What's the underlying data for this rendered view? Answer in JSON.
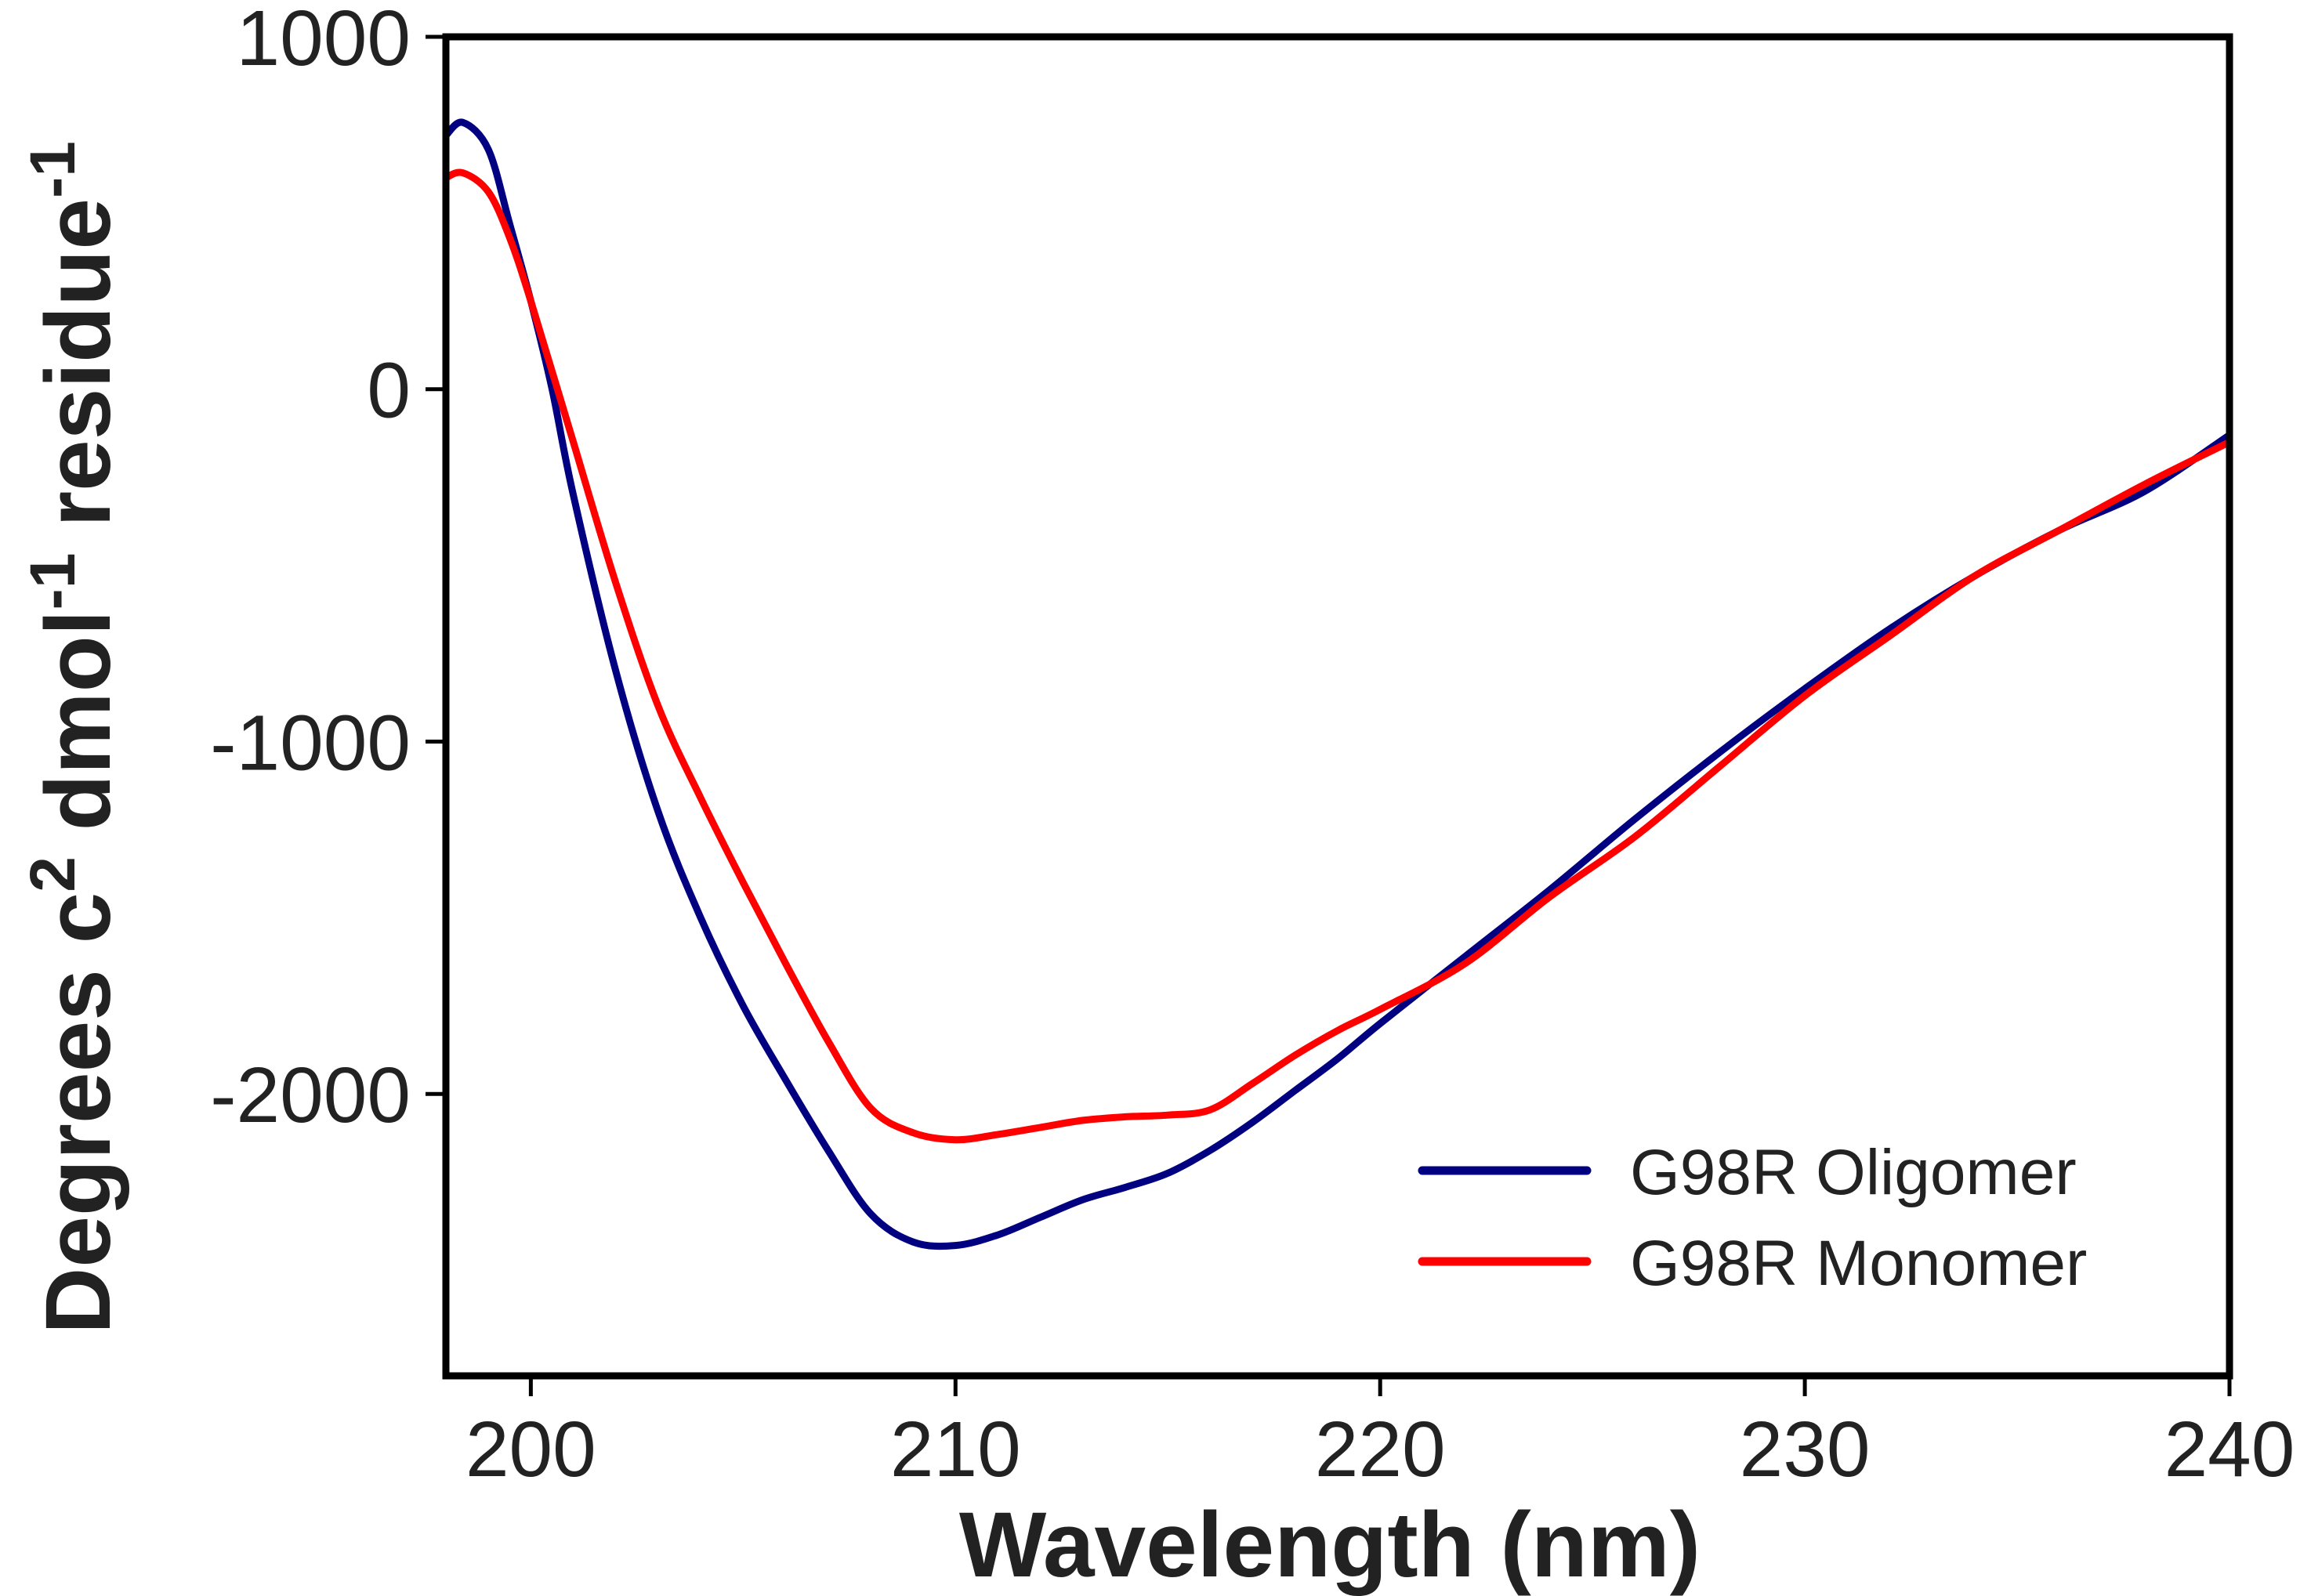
{
  "chart_data": {
    "type": "line",
    "title": "",
    "xlabel": "Wavelength (nm)",
    "ylabel_parts": [
      "Degrees c",
      "2",
      " dmol",
      "-1",
      " residue",
      "-1"
    ],
    "ylabel": "Degrees c2 dmol-1 residue-1",
    "xlim": [
      198,
      240
    ],
    "ylim": [
      -2800,
      1000
    ],
    "xticks": [
      200,
      210,
      220,
      230,
      240
    ],
    "yticks": [
      1000,
      0,
      -1000,
      -2000
    ],
    "xtick_labels": [
      "200",
      "210",
      "220",
      "230",
      "240"
    ],
    "ytick_labels": [
      "1000",
      "0",
      "-1000",
      "-2000"
    ],
    "grid": false,
    "legend_position": "bottom-right",
    "series": [
      {
        "name": "G98R Oligomer",
        "color": "#000080",
        "x": [
          198.0,
          198.4,
          199.0,
          199.5,
          200.0,
          200.5,
          201.0,
          202.0,
          203.0,
          204.0,
          205.0,
          206.0,
          207.0,
          208.0,
          209.0,
          210.0,
          211.0,
          212.0,
          213.0,
          214.0,
          215.0,
          216.0,
          217.0,
          218.0,
          219.0,
          220.0,
          222.0,
          224.0,
          226.0,
          228.0,
          230.0,
          232.0,
          234.0,
          236.0,
          238.0,
          240.0
        ],
        "y": [
          720,
          757,
          680,
          470,
          250,
          0,
          -300,
          -800,
          -1200,
          -1500,
          -1750,
          -1960,
          -2160,
          -2340,
          -2420,
          -2430,
          -2400,
          -2350,
          -2300,
          -2265,
          -2225,
          -2160,
          -2080,
          -1990,
          -1900,
          -1800,
          -1610,
          -1420,
          -1220,
          -1030,
          -850,
          -680,
          -530,
          -400,
          -290,
          -130
        ]
      },
      {
        "name": "G98R Monomer",
        "color": "#ff0000",
        "x": [
          198.0,
          198.4,
          199.0,
          199.5,
          200.0,
          201.0,
          202.0,
          203.0,
          204.0,
          205.0,
          206.0,
          207.0,
          208.0,
          209.0,
          210.0,
          211.0,
          212.0,
          213.0,
          214.0,
          215.0,
          216.0,
          217.0,
          218.0,
          219.0,
          220.0,
          222.0,
          224.0,
          226.0,
          228.0,
          230.0,
          232.0,
          234.0,
          236.0,
          238.0,
          240.0
        ],
        "y": [
          600,
          614,
          560,
          430,
          250,
          -150,
          -550,
          -900,
          -1160,
          -1400,
          -1630,
          -1850,
          -2040,
          -2110,
          -2130,
          -2115,
          -2095,
          -2075,
          -2065,
          -2060,
          -2045,
          -1970,
          -1890,
          -1820,
          -1760,
          -1630,
          -1440,
          -1270,
          -1070,
          -870,
          -700,
          -530,
          -400,
          -270,
          -150
        ]
      }
    ]
  }
}
